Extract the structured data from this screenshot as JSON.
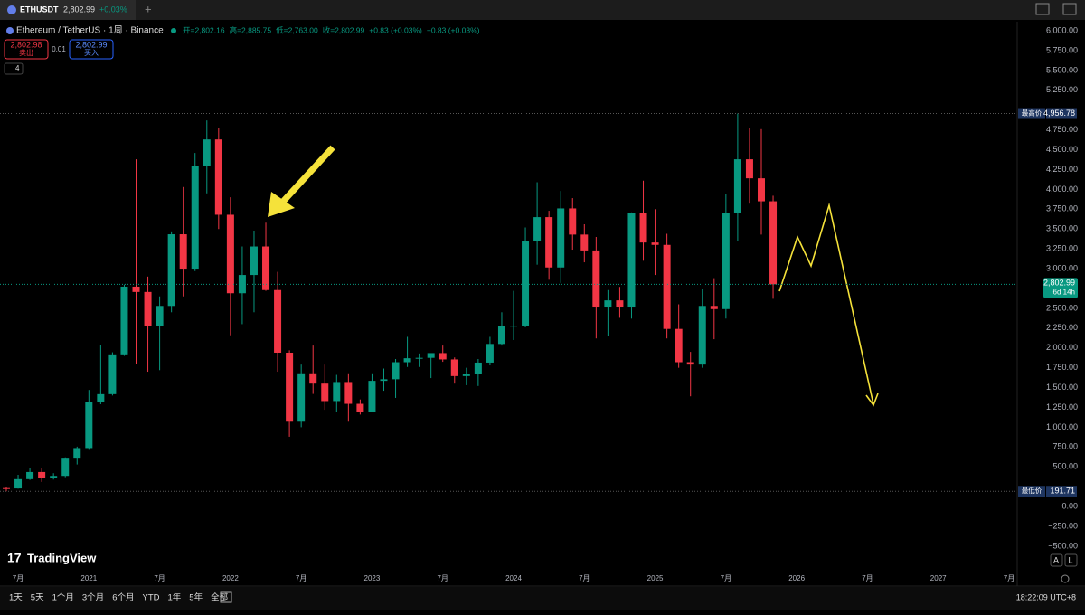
{
  "chart_data": {
    "type": "candlestick",
    "title": "Ethereum / TetherUS · 1周 · Binance",
    "ohlc_labels": [
      "开=2,802.16",
      "高=2,885.75",
      "低=2,763.00",
      "收=2,802.99",
      "+0.83 (+0.03%)",
      "+0.83 (+0.03%)"
    ],
    "x": [
      "2020-06",
      "2020-07",
      "2020-08",
      "2020-09",
      "2020-10",
      "2020-11",
      "2020-12",
      "2021-01",
      "2021-02",
      "2021-03",
      "2021-04",
      "2021-05",
      "2021-06",
      "2021-07",
      "2021-08",
      "2021-09",
      "2021-10",
      "2021-11",
      "2021-12",
      "2022-01",
      "2022-02",
      "2022-03",
      "2022-04",
      "2022-05",
      "2022-06",
      "2022-07",
      "2022-08",
      "2022-09",
      "2022-10",
      "2022-11",
      "2022-12",
      "2023-01",
      "2023-02",
      "2023-03",
      "2023-04",
      "2023-05",
      "2023-06",
      "2023-07",
      "2023-08",
      "2023-09",
      "2023-10",
      "2023-11",
      "2023-12",
      "2024-01",
      "2024-02",
      "2024-03",
      "2024-04",
      "2024-05",
      "2024-06",
      "2024-07",
      "2024-08",
      "2024-09",
      "2024-10",
      "2024-11",
      "2024-12",
      "2025-01",
      "2025-02",
      "2025-03",
      "2025-04",
      "2025-05",
      "2025-06",
      "2025-07",
      "2025-08",
      "2025-09",
      "2025-10",
      "2025-11"
    ],
    "open": [
      232,
      228,
      345,
      435,
      360,
      386,
      615,
      737,
      1314,
      1417,
      1919,
      2773,
      2706,
      2275,
      2530,
      3434,
      3000,
      4290,
      4630,
      3680,
      2690,
      2920,
      3280,
      2730,
      1940,
      1070,
      1680,
      1550,
      1330,
      1570,
      1295,
      1195,
      1585,
      1605,
      1820,
      1870,
      1875,
      1935,
      1855,
      1645,
      1670,
      1815,
      2050,
      2280,
      2280,
      3350,
      3650,
      3015,
      3760,
      3430,
      3230,
      2510,
      2600,
      2510,
      3700,
      3330,
      3300,
      2240,
      1820,
      1790,
      2530,
      2490,
      3700,
      4380,
      4140,
      3850
    ],
    "high": [
      250,
      400,
      490,
      490,
      420,
      620,
      755,
      1470,
      2040,
      1945,
      2800,
      4380,
      2900,
      2650,
      3470,
      4030,
      4460,
      4870,
      4780,
      3900,
      3280,
      3480,
      3580,
      2960,
      1970,
      1790,
      2030,
      1790,
      1660,
      1680,
      1350,
      1680,
      1740,
      1860,
      2140,
      1930,
      1930,
      2030,
      1880,
      1750,
      1860,
      2140,
      2450,
      2720,
      3520,
      4090,
      3730,
      3980,
      3890,
      3560,
      3400,
      2730,
      2770,
      3710,
      4110,
      3750,
      3440,
      2550,
      1950,
      2740,
      2880,
      3940,
      4956.78,
      4770,
      4760,
      3920
    ],
    "low": [
      191.71,
      225,
      335,
      310,
      340,
      370,
      530,
      715,
      1290,
      1400,
      1900,
      1800,
      1700,
      1720,
      2450,
      2650,
      2970,
      3950,
      3500,
      2160,
      2300,
      2450,
      2720,
      1700,
      880,
      1000,
      1420,
      1220,
      1190,
      1070,
      1160,
      1190,
      1460,
      1370,
      1760,
      1760,
      1620,
      1825,
      1550,
      1530,
      1520,
      1780,
      2030,
      2100,
      2260,
      3050,
      2860,
      2820,
      3240,
      3080,
      2120,
      2150,
      2380,
      2370,
      3100,
      2920,
      2120,
      1750,
      1390,
      1750,
      2110,
      2370,
      3350,
      3820,
      3430,
      2620
    ],
    "close": [
      228,
      345,
      435,
      360,
      386,
      615,
      737,
      1314,
      1417,
      1919,
      2773,
      2706,
      2275,
      2530,
      3434,
      3000,
      4290,
      4630,
      3680,
      2690,
      2920,
      3280,
      2730,
      1940,
      1070,
      1680,
      1550,
      1330,
      1570,
      1295,
      1195,
      1585,
      1605,
      1820,
      1870,
      1875,
      1935,
      1855,
      1645,
      1670,
      1815,
      2050,
      2280,
      2280,
      3350,
      3650,
      3015,
      3760,
      3430,
      3230,
      2510,
      2600,
      2510,
      3700,
      3330,
      3300,
      2240,
      1820,
      1790,
      2530,
      2490,
      3700,
      4380,
      4140,
      3850,
      2802.99
    ],
    "up_color": "#089981",
    "down_color": "#f23645",
    "xlim": [
      "2020-05",
      "2027-08"
    ],
    "xticks": [
      {
        "value": "2020-07",
        "label": "7月"
      },
      {
        "value": "2021-01",
        "label": "2021"
      },
      {
        "value": "2021-07",
        "label": "7月"
      },
      {
        "value": "2022-01",
        "label": "2022"
      },
      {
        "value": "2022-07",
        "label": "7月"
      },
      {
        "value": "2023-01",
        "label": "2023"
      },
      {
        "value": "2023-07",
        "label": "7月"
      },
      {
        "value": "2024-01",
        "label": "2024"
      },
      {
        "value": "2024-07",
        "label": "7月"
      },
      {
        "value": "2025-01",
        "label": "2025"
      },
      {
        "value": "2025-07",
        "label": "7月"
      },
      {
        "value": "2026-01",
        "label": "2026"
      },
      {
        "value": "2026-07",
        "label": "7月"
      },
      {
        "value": "2027-01",
        "label": "2027"
      },
      {
        "value": "2027-07",
        "label": "7月"
      }
    ],
    "ylim": [
      -775,
      6115
    ],
    "yticks": [
      {
        "value": -500,
        "label": "−500.00"
      },
      {
        "value": -250,
        "label": "−250.00"
      },
      {
        "value": 0,
        "label": "0.00"
      },
      {
        "value": 500,
        "label": "500.00"
      },
      {
        "value": 750,
        "label": "750.00"
      },
      {
        "value": 1000,
        "label": "1,000.00"
      },
      {
        "value": 1250,
        "label": "1,250.00"
      },
      {
        "value": 1500,
        "label": "1,500.00"
      },
      {
        "value": 1750,
        "label": "1,750.00"
      },
      {
        "value": 2000,
        "label": "2,000.00"
      },
      {
        "value": 2250,
        "label": "2,250.00"
      },
      {
        "value": 2500,
        "label": "2,500.00"
      },
      {
        "value": 3000,
        "label": "3,000.00"
      },
      {
        "value": 3250,
        "label": "3,250.00"
      },
      {
        "value": 3500,
        "label": "3,500.00"
      },
      {
        "value": 3750,
        "label": "3,750.00"
      },
      {
        "value": 4000,
        "label": "4,000.00"
      },
      {
        "value": 4250,
        "label": "4,250.00"
      },
      {
        "value": 4500,
        "label": "4,500.00"
      },
      {
        "value": 4750,
        "label": "4,750.00"
      },
      {
        "value": 5250,
        "label": "5,250.00"
      },
      {
        "value": 5500,
        "label": "5,500.00"
      },
      {
        "value": 5750,
        "label": "5,750.00"
      },
      {
        "value": 6000,
        "label": "6,000.00"
      }
    ],
    "grid": false,
    "high_line": {
      "name": "最高价",
      "value": 4956.78,
      "label": "4,956.78"
    },
    "low_line": {
      "name": "最低价",
      "value": 191.71,
      "label": "191.71"
    },
    "last_price": {
      "value": 2802.99,
      "label": "2,802.99",
      "countdown": "6d 14h"
    }
  },
  "ui": {
    "symbol": "ETHUSDT",
    "price": "2,802.99",
    "change": "+0.03%",
    "sell_price": "2,802.98",
    "sell": "卖出",
    "spread": "0.01",
    "buy_price": "2,802.99",
    "buy": "买入",
    "indicators": "4",
    "brand": "TradingView",
    "scale_a": "A",
    "scale_l": "L",
    "ranges": [
      "1天",
      "5天",
      "1个月",
      "3个月",
      "6个月",
      "YTD",
      "1年",
      "5年",
      "全部"
    ],
    "clock": "18:22:09 UTC+8"
  }
}
